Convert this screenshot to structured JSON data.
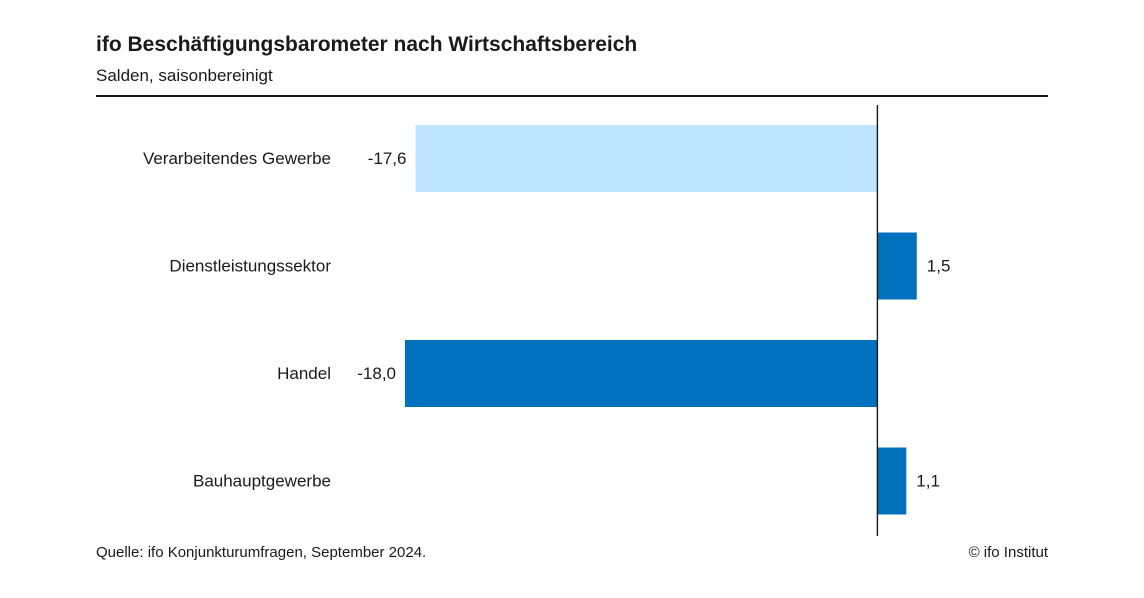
{
  "chart_data": {
    "type": "bar",
    "orientation": "horizontal",
    "title": "ifo Beschäftigungsbarometer nach Wirtschaftsbereich",
    "subtitle": "Salden, saisonbereinigt",
    "categories": [
      "Verarbeitendes Gewerbe",
      "Dienstleistungssektor",
      "Handel",
      "Bauhauptgewerbe"
    ],
    "values": [
      -17.6,
      1.5,
      -18.0,
      1.1
    ],
    "value_labels": [
      "-17,6",
      "1,5",
      "-18,0",
      "1,1"
    ],
    "bar_colors": [
      "#bfe4ff",
      "#0071bc",
      "#0071bc",
      "#0071bc"
    ],
    "xlim": [
      -18.0,
      6.5
    ],
    "grid": false,
    "legend": "none"
  },
  "footer": {
    "source": "Quelle: ifo Konjunkturumfragen, September 2024.",
    "copyright": "© ifo Institut"
  }
}
